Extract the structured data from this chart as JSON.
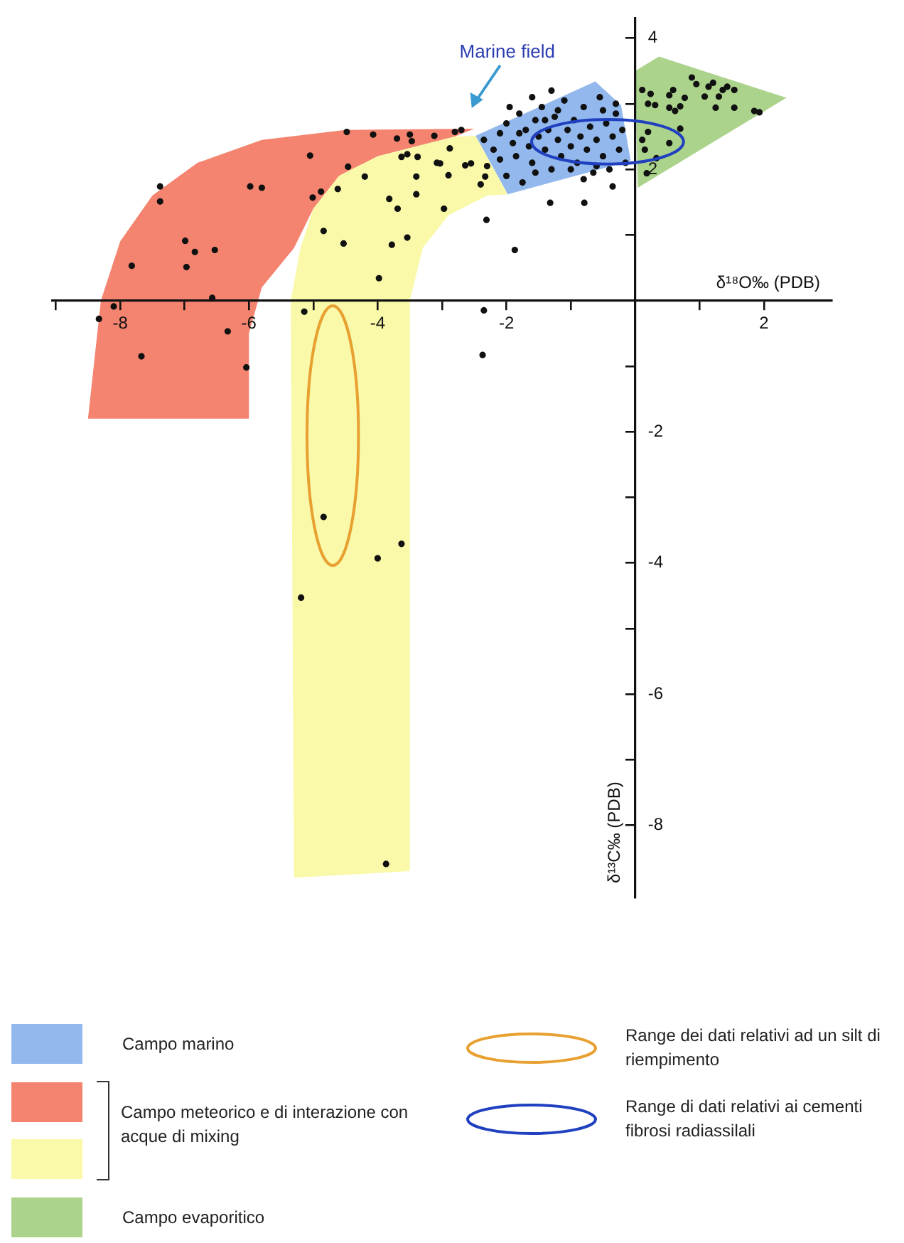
{
  "chart_data": {
    "type": "scatter",
    "xlabel": "δ¹⁸O‰ (PDB)",
    "ylabel": "δ¹³C‰ (PDB)",
    "annotations": [
      "Marine field",
      "Range dei dati relativi ad un silt di riempimento",
      "Range di dati relativi ai cementi fibrosi radiassilali"
    ],
    "xlim": [
      -9.05,
      3.05
    ],
    "ylim": [
      -9.1,
      4.3
    ],
    "xticks": [
      {
        "value": -9,
        "label": null
      },
      -8,
      {
        "value": -7,
        "label": null
      },
      -6,
      {
        "value": -5,
        "label": null
      },
      -4,
      {
        "value": -3,
        "label": null
      },
      -2,
      {
        "value": -1,
        "label": null
      },
      {
        "value": 1,
        "label": null
      },
      2
    ],
    "yticks": [
      4,
      {
        "value": 3,
        "label": null
      },
      2,
      {
        "value": 1,
        "label": null
      },
      {
        "value": -1,
        "label": null
      },
      -2,
      {
        "value": -3,
        "label": null
      },
      -4,
      {
        "value": -5,
        "label": null
      },
      -6,
      {
        "value": -7,
        "label": null
      },
      -8
    ],
    "grid": false,
    "legend": "bottom",
    "series": [
      {
        "type": "area",
        "name": "Campo marino",
        "color": "#92b8ee",
        "x": [
          -2.48,
          -0.62,
          -0.22,
          -0.07,
          -1.98
        ],
        "values": [
          2.51,
          3.34,
          2.98,
          2.13,
          1.62
        ]
      },
      {
        "type": "area",
        "name": "Campo meteorico e di interazione con acque di mixing",
        "color": "#f4836f",
        "x": [
          -8.5,
          -8.3,
          -8.0,
          -7.5,
          -6.8,
          -5.8,
          -4.5,
          -2.5,
          -2.8,
          -3.2,
          -4.0,
          -4.6,
          -5.0,
          -5.3,
          -5.8,
          -6.0,
          -6.0
        ],
        "values": [
          -1.8,
          0,
          0.9,
          1.6,
          2.1,
          2.45,
          2.6,
          2.62,
          2.5,
          2.4,
          2.2,
          1.9,
          1.4,
          0.8,
          0.2,
          -0.5,
          -1.8
        ]
      },
      {
        "type": "area",
        "color": "#f9f9a9",
        "x": [
          -2.48,
          -2.8,
          -3.2,
          -4.0,
          -4.6,
          -5.0,
          -5.2,
          -5.35,
          -5.3,
          -3.5,
          -3.5,
          -3.3,
          -2.9,
          -2.3,
          -1.98
        ],
        "values": [
          2.51,
          2.5,
          2.4,
          2.2,
          1.9,
          1.4,
          0.8,
          0,
          -8.8,
          -8.7,
          0,
          0.8,
          1.3,
          1.6,
          1.62
        ]
      },
      {
        "type": "area",
        "name": "Campo evaporitico",
        "color": "#acd38c",
        "x": [
          0,
          0.37,
          2.35,
          0.04
        ],
        "values": [
          3.5,
          3.72,
          3.09,
          1.72
        ]
      },
      {
        "type": "scatter",
        "color": "#111111",
        "x": [
          -4.48,
          -4.07,
          -3.7,
          -3.5,
          -3.47,
          -3.12,
          -2.8,
          -2.7,
          -3.63,
          -3.54,
          -5.05,
          -4.46,
          -7.38,
          -7.38,
          -5.98,
          -5.8,
          -5.01,
          -4.88,
          -4.62,
          -6.99,
          -6.84,
          -6.53,
          -6.97,
          -7.82,
          -6.57,
          -8.1,
          -8.33,
          -6.33,
          -7.67,
          -6.04,
          -4.2,
          -3.82,
          -3.69,
          -3.4,
          -3.4,
          -3.08,
          -2.9,
          -2.97,
          -2.88,
          -3.38,
          -2.64,
          -4.84,
          -4.53,
          -3.78,
          -3.54,
          -3.98,
          -5.14,
          -3.03,
          -2.55,
          -2.33,
          -2.4,
          -2.31,
          -1.87,
          -1.32,
          -0.79,
          -0.35,
          -2.35,
          -2.37,
          -4.84,
          -4.0,
          -3.63,
          -5.19,
          -3.87,
          0.11,
          0.24,
          0.2,
          0.31,
          0.53,
          0.59,
          0.53,
          0.62,
          0.7,
          0.77,
          0.88,
          0.95,
          1.08,
          1.14,
          1.21,
          1.3,
          1.36,
          1.43,
          1.54,
          1.25,
          1.54,
          1.85,
          1.93,
          0.7,
          0.2,
          0.11,
          0.15,
          0.53,
          0.33,
          0.18,
          -2.35,
          -2.2,
          -2.1,
          -2.0,
          -1.9,
          -1.85,
          -1.8,
          -1.7,
          -1.65,
          -1.6,
          -1.55,
          -1.5,
          -1.45,
          -1.4,
          -1.35,
          -1.3,
          -1.25,
          -1.2,
          -1.15,
          -1.1,
          -1.05,
          -1.0,
          -0.95,
          -0.9,
          -0.85,
          -0.8,
          -0.75,
          -0.7,
          -0.65,
          -0.6,
          -0.55,
          -0.5,
          -0.45,
          -0.4,
          -0.35,
          -0.3,
          -0.25,
          -0.2,
          -0.15,
          -2.3,
          -2.0,
          -1.75,
          -1.95,
          -1.6,
          -1.3,
          -1.0,
          -0.8,
          -1.55,
          -1.2,
          -0.5,
          -0.3,
          -0.6,
          -1.4,
          -1.8,
          -2.1
        ],
        "values": [
          2.57,
          2.53,
          2.47,
          2.53,
          2.43,
          2.51,
          2.57,
          2.6,
          2.19,
          2.23,
          2.21,
          2.04,
          1.74,
          1.51,
          1.74,
          1.72,
          1.57,
          1.66,
          1.7,
          0.91,
          0.74,
          0.77,
          0.51,
          0.53,
          0.04,
          -0.09,
          -0.28,
          -0.47,
          -0.85,
          -1.02,
          1.89,
          1.55,
          1.4,
          1.89,
          1.62,
          2.1,
          1.91,
          1.4,
          2.32,
          2.19,
          2.06,
          1.06,
          0.87,
          0.85,
          0.96,
          0.34,
          -0.17,
          2.09,
          2.09,
          1.89,
          1.77,
          1.23,
          0.77,
          1.49,
          1.49,
          1.74,
          -0.15,
          -0.83,
          -3.3,
          -3.93,
          -3.71,
          -4.53,
          -8.59,
          3.21,
          3.15,
          3.0,
          2.98,
          3.13,
          3.21,
          2.94,
          2.89,
          2.96,
          3.09,
          3.4,
          3.3,
          3.11,
          3.26,
          3.32,
          3.11,
          3.21,
          3.26,
          3.21,
          2.94,
          2.94,
          2.89,
          2.87,
          2.62,
          2.57,
          2.45,
          2.3,
          2.4,
          2.17,
          1.94,
          2.45,
          2.3,
          2.55,
          2.7,
          2.4,
          2.2,
          2.85,
          2.6,
          2.35,
          2.1,
          2.75,
          2.5,
          2.95,
          2.3,
          2.6,
          2.0,
          2.8,
          2.45,
          2.2,
          3.05,
          2.6,
          2.35,
          2.75,
          2.1,
          2.5,
          2.95,
          2.3,
          2.65,
          1.95,
          2.45,
          3.1,
          2.2,
          2.7,
          2.0,
          2.5,
          2.85,
          2.3,
          2.6,
          2.1,
          2.05,
          1.9,
          1.8,
          2.95,
          3.1,
          3.2,
          2.0,
          1.85,
          1.95,
          2.9,
          2.9,
          3.0,
          2.05,
          2.75,
          2.55,
          2.15
        ]
      }
    ]
  }
}
